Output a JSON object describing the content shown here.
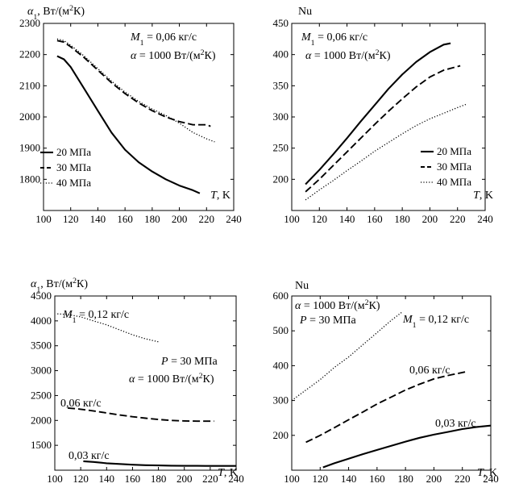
{
  "chart_data": [
    {
      "type": "line",
      "title": "",
      "ylabel": "α₁, Вт/(м²К)",
      "xlabel": "T, K",
      "xlim": [
        100,
        240
      ],
      "ylim": [
        1700,
        2300
      ],
      "xticks": [
        100,
        120,
        140,
        160,
        180,
        200,
        220,
        240
      ],
      "yticks": [
        1800,
        1900,
        2000,
        2100,
        2200,
        2300
      ],
      "annotations": [
        "M₁ = 0,06 кг/с",
        "α = 1000 Вт/(м²К)"
      ],
      "legend_position": "bottom-left",
      "series": [
        {
          "name": "20 МПа",
          "style": "solid",
          "x": [
            110,
            115,
            120,
            130,
            140,
            150,
            160,
            170,
            180,
            190,
            200,
            210,
            215
          ],
          "y": [
            2195,
            2185,
            2160,
            2090,
            2020,
            1950,
            1895,
            1855,
            1825,
            1800,
            1780,
            1765,
            1755
          ]
        },
        {
          "name": "30 МПа",
          "style": "dashed",
          "x": [
            110,
            115,
            120,
            130,
            140,
            150,
            160,
            170,
            180,
            190,
            200,
            210,
            220,
            223
          ],
          "y": [
            2245,
            2240,
            2225,
            2190,
            2150,
            2110,
            2075,
            2045,
            2020,
            2000,
            1985,
            1975,
            1975,
            1970
          ]
        },
        {
          "name": "40 МПа",
          "style": "dotted",
          "x": [
            110,
            115,
            120,
            130,
            140,
            150,
            160,
            170,
            180,
            190,
            200,
            210,
            220,
            226
          ],
          "y": [
            2250,
            2245,
            2230,
            2195,
            2155,
            2115,
            2080,
            2050,
            2025,
            2005,
            1980,
            1950,
            1930,
            1920
          ]
        }
      ]
    },
    {
      "type": "line",
      "title": "",
      "ylabel": "Nu",
      "xlabel": "T, K",
      "xlim": [
        100,
        240
      ],
      "ylim": [
        150,
        450
      ],
      "xticks": [
        100,
        120,
        140,
        160,
        180,
        200,
        220,
        240
      ],
      "yticks": [
        200,
        250,
        300,
        350,
        400,
        450
      ],
      "annotations": [
        "M₁ = 0,06 кг/с",
        "α = 1000 Вт/(м²К)"
      ],
      "legend_position": "bottom-right",
      "series": [
        {
          "name": "20 МПа",
          "style": "solid",
          "x": [
            110,
            120,
            130,
            140,
            150,
            160,
            170,
            180,
            190,
            200,
            210,
            215
          ],
          "y": [
            192,
            215,
            240,
            266,
            293,
            319,
            345,
            368,
            388,
            404,
            416,
            418
          ]
        },
        {
          "name": "30 МПа",
          "style": "dashed",
          "x": [
            110,
            120,
            130,
            140,
            150,
            160,
            170,
            180,
            190,
            200,
            210,
            222
          ],
          "y": [
            180,
            200,
            222,
            244,
            266,
            288,
            309,
            329,
            348,
            364,
            375,
            382
          ]
        },
        {
          "name": "40 МПа",
          "style": "dotted",
          "x": [
            110,
            120,
            130,
            140,
            150,
            160,
            170,
            180,
            190,
            200,
            210,
            220,
            226
          ],
          "y": [
            167,
            183,
            198,
            214,
            229,
            245,
            259,
            273,
            286,
            297,
            306,
            315,
            320
          ]
        }
      ]
    },
    {
      "type": "line",
      "title": "",
      "ylabel": "α₁, Вт/(м²К)",
      "xlabel": "T, K",
      "xlim": [
        100,
        240
      ],
      "ylim": [
        1000,
        4500
      ],
      "xticks": [
        100,
        120,
        140,
        160,
        180,
        200,
        220,
        240
      ],
      "yticks": [
        1500,
        2000,
        2500,
        3000,
        3500,
        4000,
        4500
      ],
      "annotations": [
        "P = 30 МПа",
        "α = 1000 Вт/(м²К)"
      ],
      "series": [
        {
          "name": "M₁ = 0,12 кг/с",
          "style": "dotted",
          "x": [
            102,
            110,
            120,
            130,
            140,
            150,
            160,
            170,
            180
          ],
          "y": [
            4140,
            4130,
            4080,
            4000,
            3920,
            3820,
            3720,
            3640,
            3580
          ]
        },
        {
          "name": "0,06 кг/с",
          "style": "dashed",
          "x": [
            110,
            120,
            130,
            140,
            150,
            160,
            170,
            180,
            190,
            200,
            210,
            220,
            223
          ],
          "y": [
            2250,
            2225,
            2190,
            2150,
            2110,
            2075,
            2045,
            2020,
            2000,
            1990,
            1985,
            1985,
            1985
          ]
        },
        {
          "name": "0,03 кг/с",
          "style": "solid",
          "x": [
            122,
            130,
            140,
            150,
            160,
            170,
            180,
            190,
            200,
            210,
            220,
            230,
            240
          ],
          "y": [
            1180,
            1165,
            1140,
            1125,
            1110,
            1100,
            1095,
            1090,
            1088,
            1087,
            1086,
            1086,
            1086
          ]
        }
      ]
    },
    {
      "type": "line",
      "title": "",
      "ylabel": "Nu",
      "xlabel": "T, K",
      "xlim": [
        100,
        240
      ],
      "ylim": [
        100,
        600
      ],
      "xticks": [
        100,
        120,
        140,
        160,
        180,
        200,
        220,
        240
      ],
      "yticks": [
        200,
        300,
        400,
        500,
        600
      ],
      "annotations": [
        "α = 1000 Вт/(м²К)",
        "P = 30 МПа"
      ],
      "series": [
        {
          "name": "M₁ = 0,12 кг/с",
          "style": "dotted",
          "x": [
            100,
            110,
            120,
            130,
            140,
            150,
            160,
            170,
            178
          ],
          "y": [
            300,
            330,
            360,
            395,
            425,
            460,
            495,
            530,
            555
          ]
        },
        {
          "name": "0,06 кг/с",
          "style": "dashed",
          "x": [
            110,
            120,
            130,
            140,
            150,
            160,
            170,
            180,
            190,
            200,
            210,
            222
          ],
          "y": [
            180,
            200,
            222,
            245,
            267,
            290,
            310,
            330,
            347,
            362,
            372,
            382
          ]
        },
        {
          "name": "0,03 кг/с",
          "style": "solid",
          "x": [
            122,
            130,
            140,
            150,
            160,
            170,
            180,
            190,
            200,
            210,
            220,
            230,
            240
          ],
          "y": [
            108,
            120,
            133,
            146,
            158,
            170,
            182,
            193,
            202,
            210,
            218,
            224,
            228
          ]
        }
      ]
    }
  ]
}
